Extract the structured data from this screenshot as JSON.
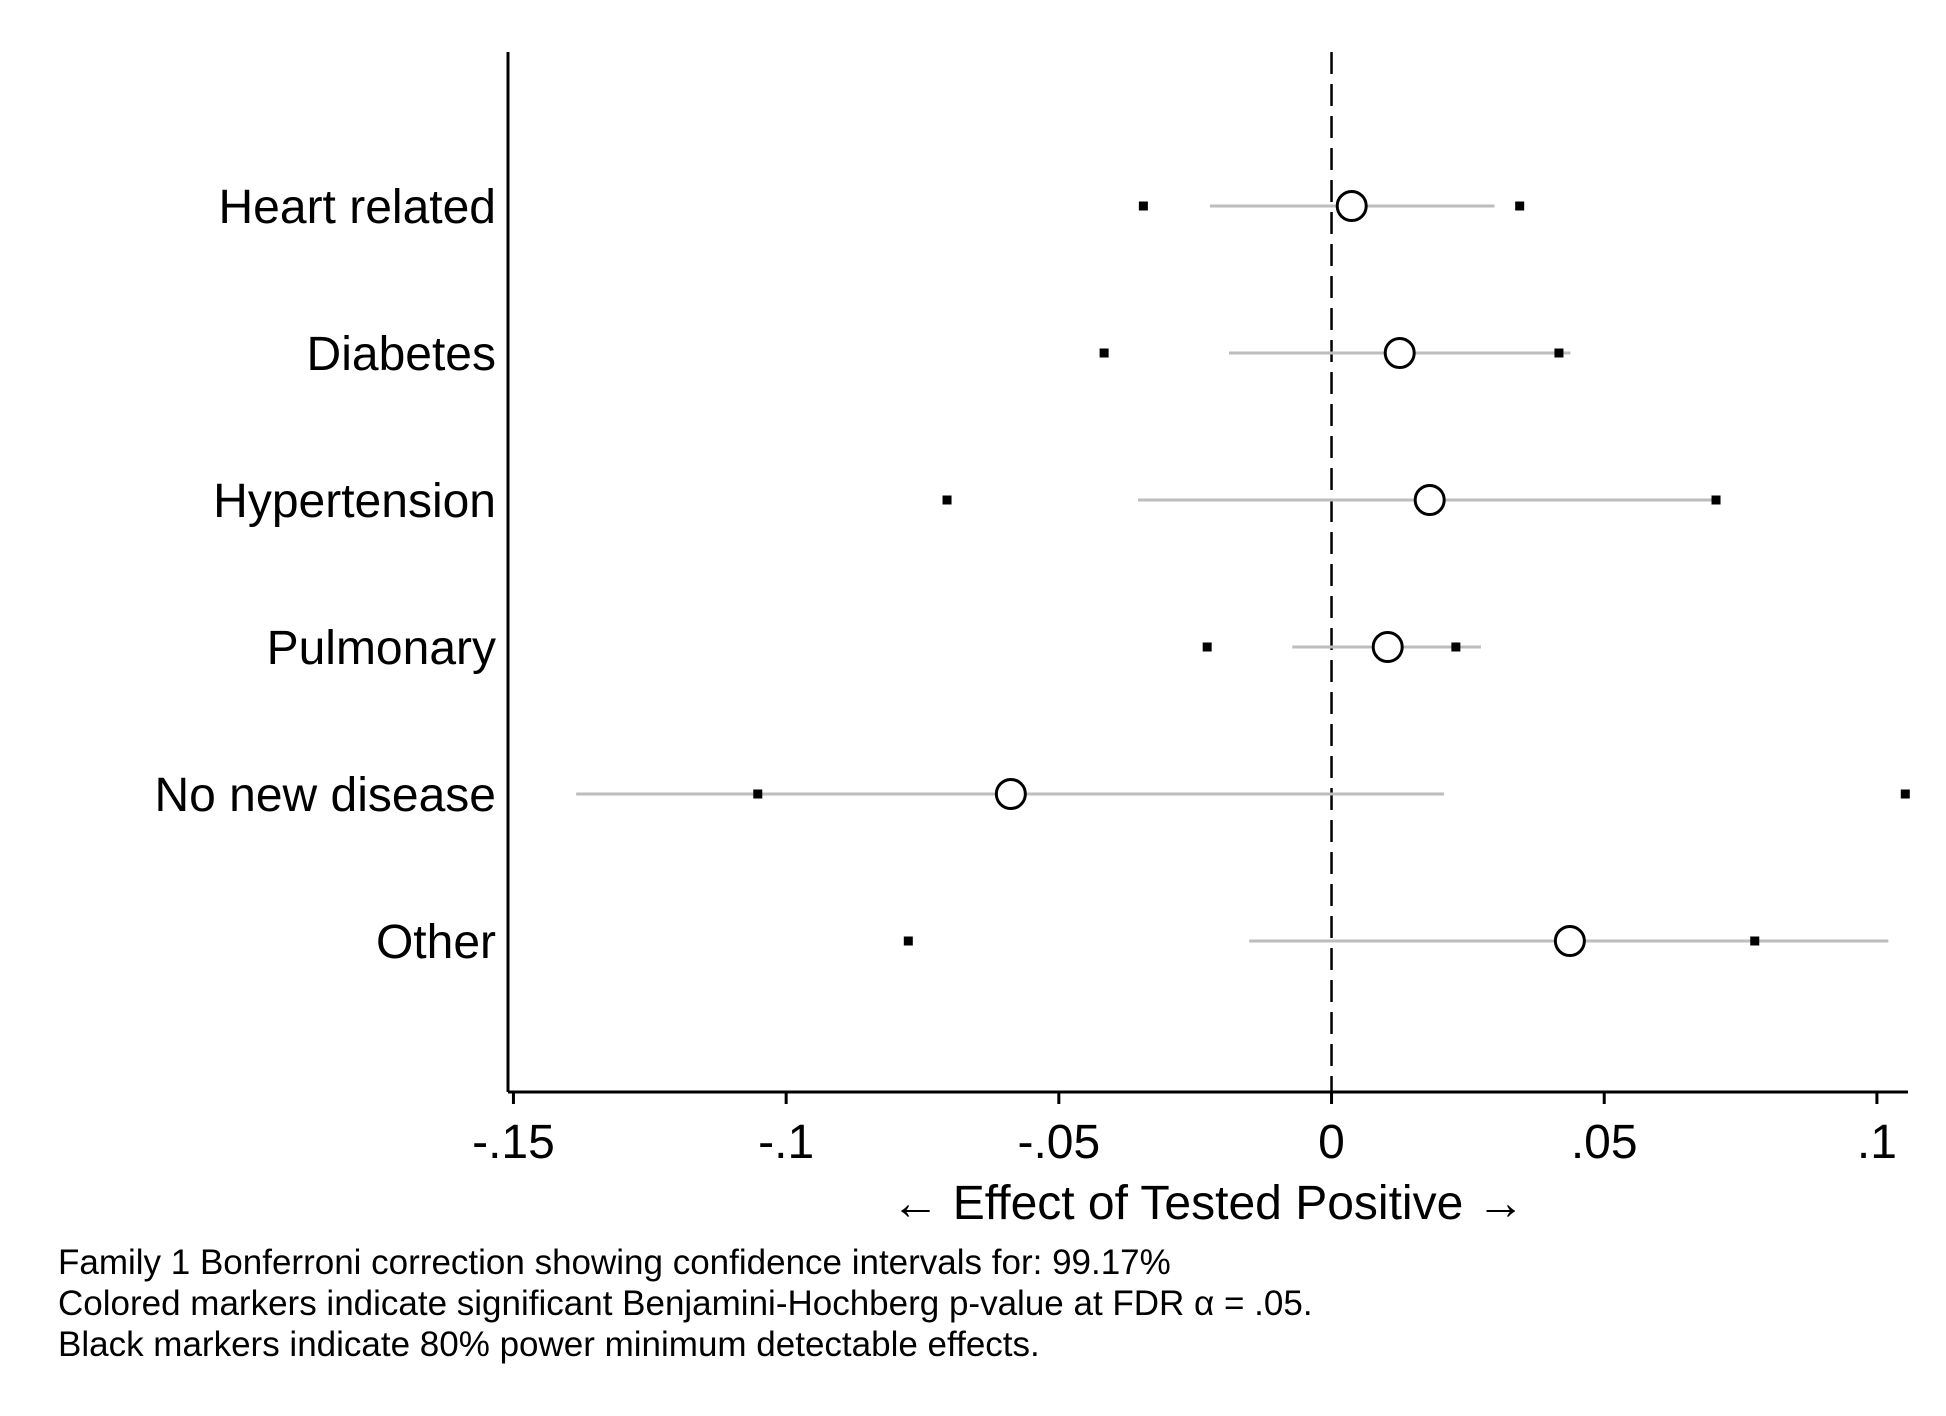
{
  "chart_data": {
    "type": "scatter",
    "subtype": "coefficient-plot",
    "categories": [
      "Heart related",
      "Diabetes",
      "Hypertension",
      "Pulmonary",
      "No new disease",
      "Other"
    ],
    "estimates": [
      0.0037,
      0.0125,
      0.018,
      0.0103,
      -0.0588,
      0.0437
    ],
    "ci_low": [
      -0.0223,
      -0.0188,
      -0.0355,
      -0.0072,
      -0.1385,
      -0.0151
    ],
    "ci_high": [
      0.0299,
      0.0438,
      0.0705,
      0.0274,
      0.0206,
      0.1021
    ],
    "mde_low": [
      -0.0345,
      -0.0417,
      -0.0705,
      -0.0228,
      -0.1052,
      -0.0776
    ],
    "mde_high": [
      0.0345,
      0.0417,
      0.0705,
      0.0228,
      0.1052,
      0.0776
    ],
    "reference_line_x": 0,
    "xlim": [
      -0.151,
      0.1057
    ],
    "xticks": [
      -0.15,
      -0.1,
      -0.05,
      0,
      0.05,
      0.1
    ],
    "xtick_labels": [
      "-.15",
      "-.1",
      "-.05",
      "0",
      ".05",
      ".1"
    ],
    "xlabel": "← Effect of Tested Positive →",
    "ylabel": "",
    "grid": false,
    "legend": "none",
    "colors": {
      "estimate_marker_fill": "#ffffff",
      "estimate_marker_stroke": "#000000",
      "ci_line": "#bdbdbd",
      "mde_marker": "#000000",
      "reference_line": "#000000",
      "axis": "#000000"
    }
  },
  "notes": [
    "Family 1 Bonferroni correction showing confidence intervals for: 99.17%",
    "Colored markers indicate significant Benjamini-Hochberg p-value at FDR α = .05.",
    "Black markers indicate 80% power minimum detectable effects."
  ]
}
